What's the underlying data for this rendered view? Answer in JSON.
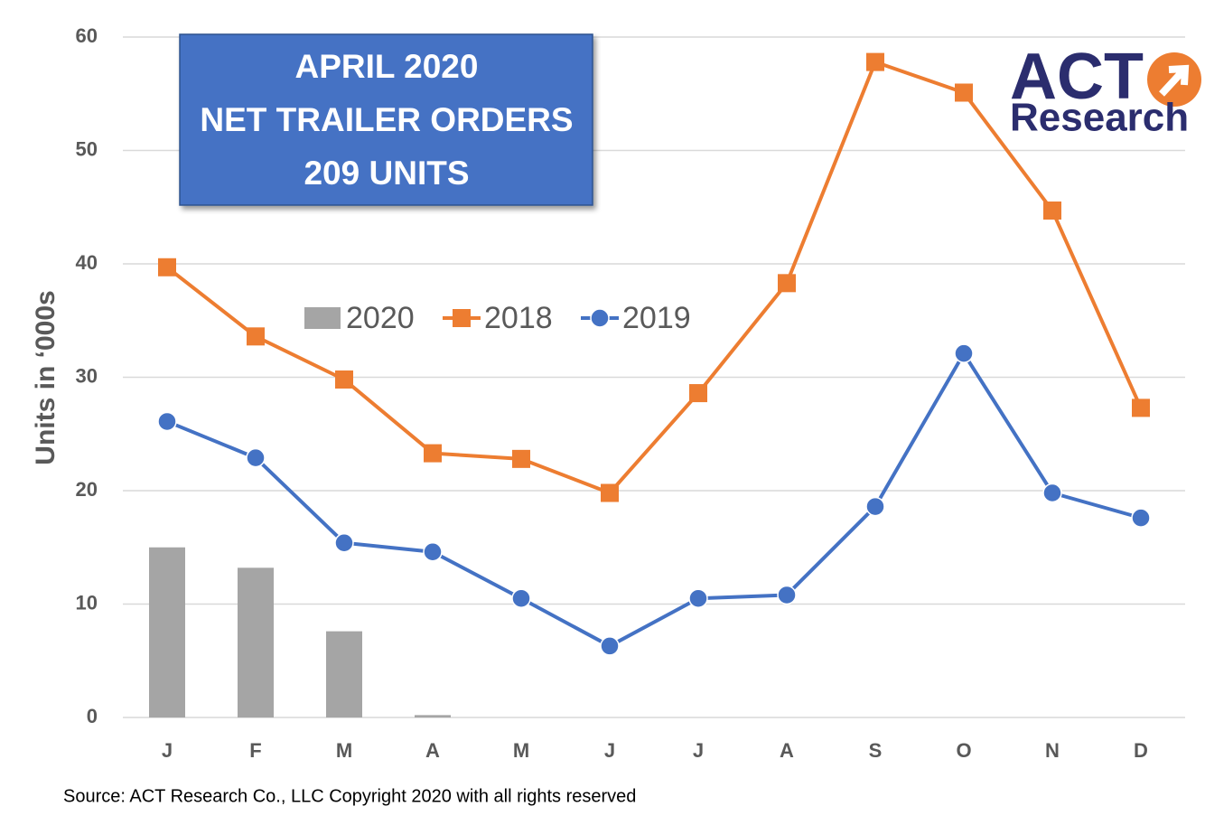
{
  "chart_data": {
    "type": "bar-line",
    "annotation": [
      "APRIL 2020",
      "NET TRAILER ORDERS",
      "209 UNITS"
    ],
    "logo": [
      "ACT",
      "Research"
    ],
    "source": "Source: ACT Research Co., LLC  Copyright 2020 with all rights reserved",
    "y_label": "Units in ‘000s",
    "categories": [
      "J",
      "F",
      "M",
      "A",
      "M",
      "J",
      "J",
      "A",
      "S",
      "O",
      "N",
      "D"
    ],
    "series": [
      {
        "name": "2020",
        "type": "bar",
        "color": "#a5a5a5",
        "values": [
          15.0,
          13.2,
          7.6,
          0.209,
          null,
          null,
          null,
          null,
          null,
          null,
          null,
          null
        ]
      },
      {
        "name": "2018",
        "type": "line",
        "marker": "square",
        "color": "#ed7d31",
        "values": [
          39.7,
          33.6,
          29.8,
          23.3,
          22.8,
          19.8,
          28.6,
          38.3,
          57.8,
          55.1,
          44.7,
          27.3
        ]
      },
      {
        "name": "2019",
        "type": "line",
        "marker": "circle",
        "color": "#4472c4",
        "values": [
          26.1,
          22.9,
          15.4,
          14.6,
          10.5,
          6.3,
          10.5,
          10.8,
          18.6,
          32.1,
          19.8,
          17.6
        ]
      }
    ],
    "ylim": [
      0,
      60
    ],
    "yticks": [
      0,
      10,
      20,
      30,
      40,
      50,
      60
    ],
    "grid": true
  }
}
